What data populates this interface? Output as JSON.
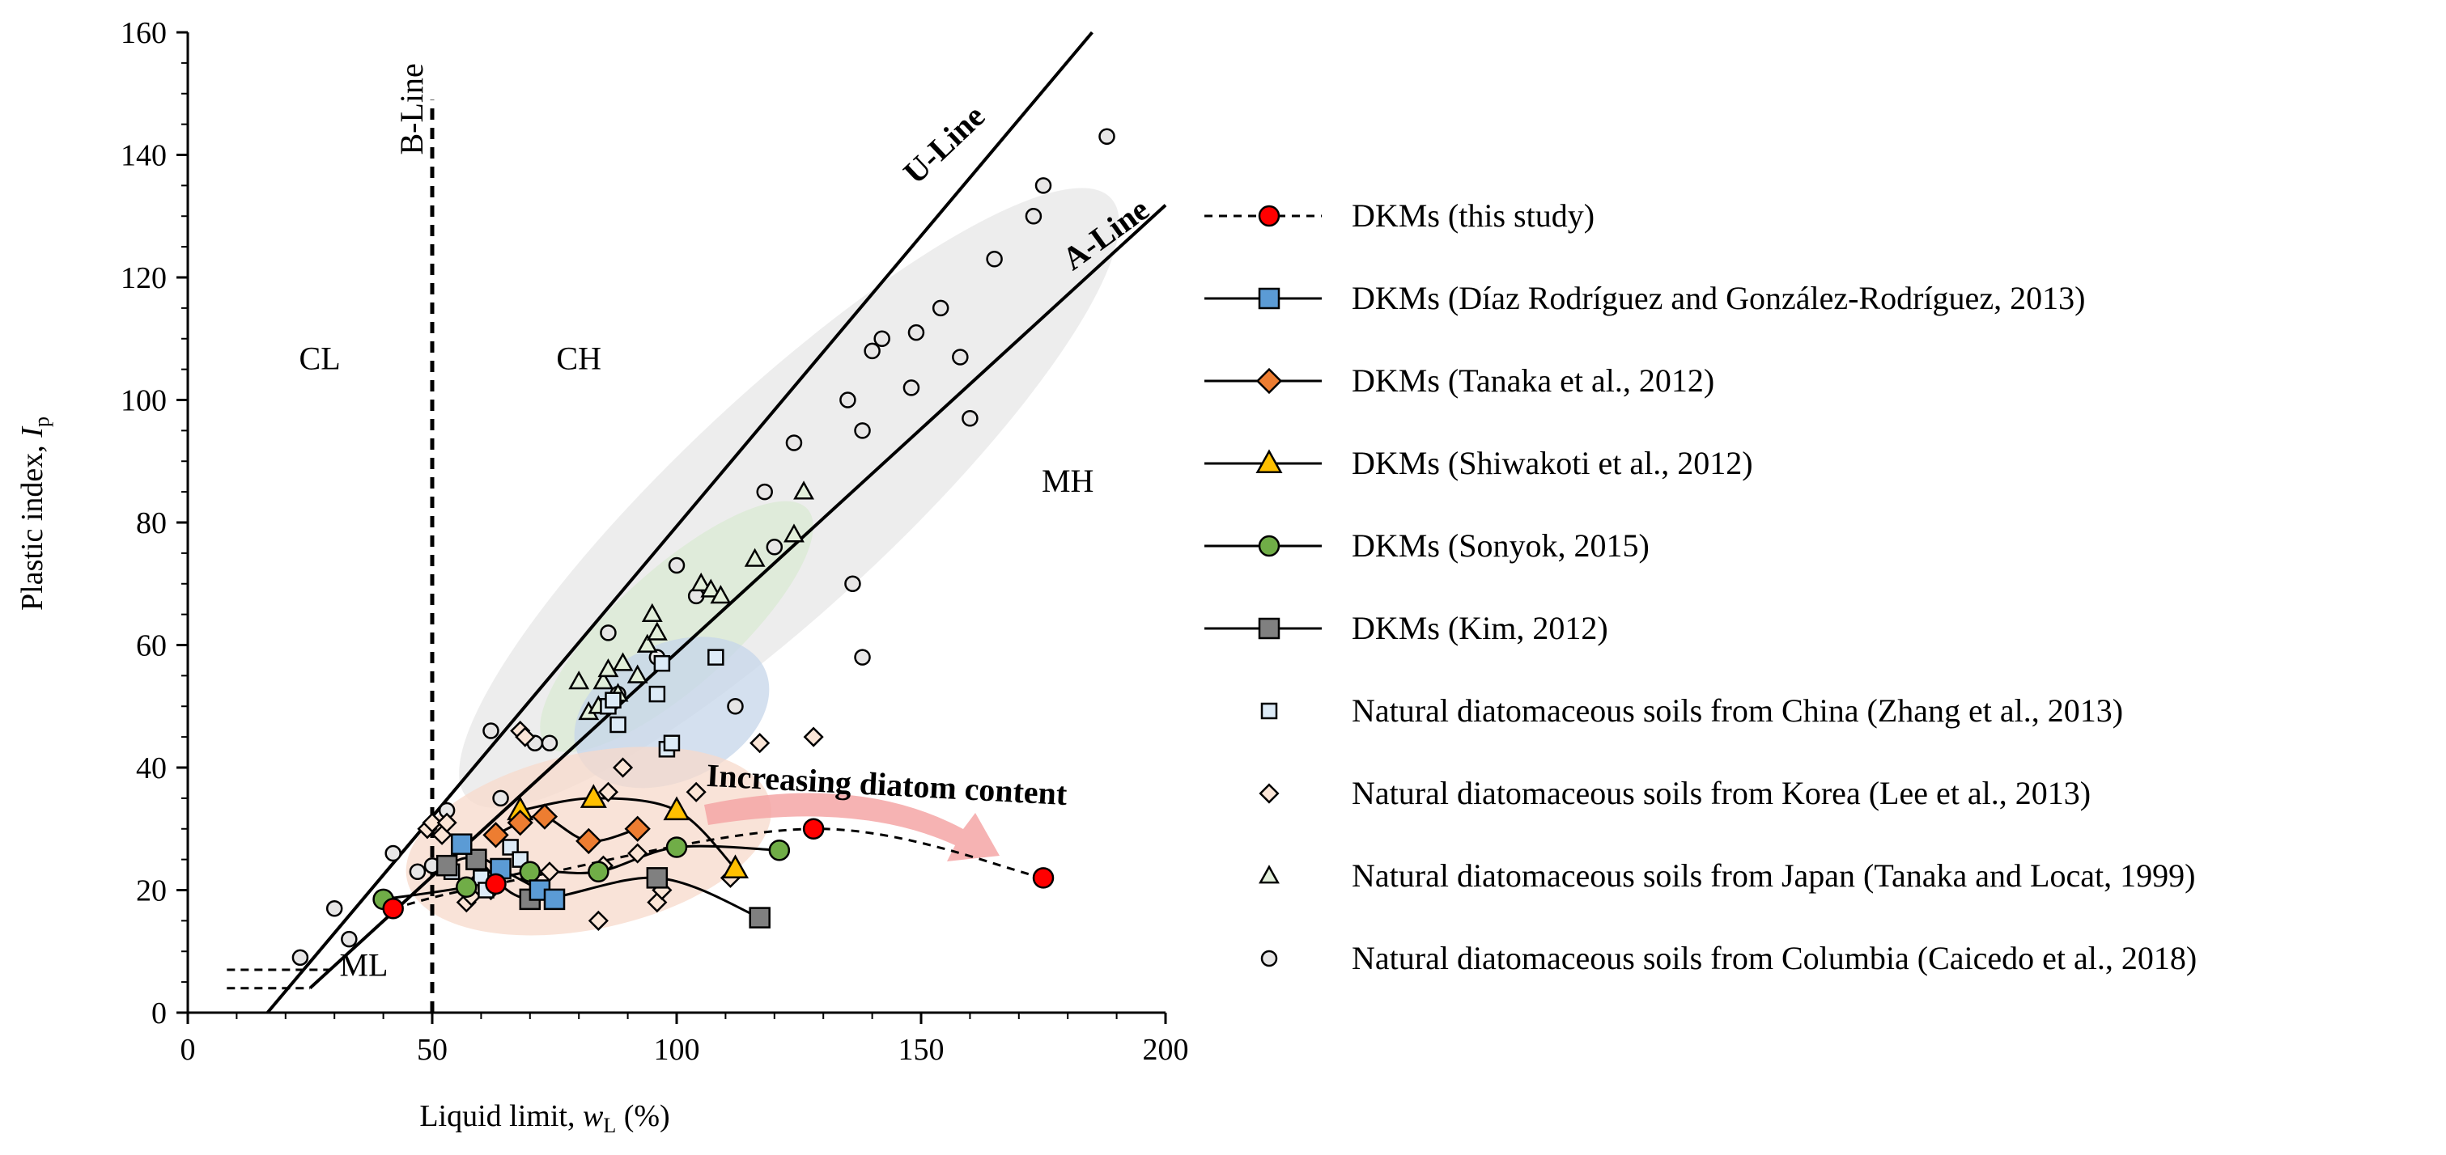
{
  "chart_data": {
    "type": "scatter",
    "title": "",
    "xlabel": "Liquid limit, ",
    "xlabel_var": "w",
    "xlabel_sub": "L",
    "xlabel_unit": " (%)",
    "ylabel": "Plastic index, ",
    "ylabel_var": "I",
    "ylabel_sub": "p",
    "xlim": [
      0,
      200
    ],
    "ylim": [
      0,
      160
    ],
    "xticks": [
      0,
      50,
      100,
      150,
      200
    ],
    "yticks": [
      0,
      20,
      40,
      60,
      80,
      100,
      120,
      140,
      160
    ],
    "grid": false,
    "legend_position": "right",
    "zone_labels": [
      {
        "text": "CL",
        "x": 27,
        "y": 105
      },
      {
        "text": "CH",
        "x": 80,
        "y": 105
      },
      {
        "text": "MH",
        "x": 180,
        "y": 85
      },
      {
        "text": "ML",
        "x": 36,
        "y": 6
      }
    ],
    "reference_lines": [
      {
        "name": "U-Line",
        "points": [
          [
            16.3,
            0
          ],
          [
            185,
            160
          ]
        ],
        "label_pos": [
          149,
          135
        ],
        "angle": -43.5
      },
      {
        "name": "A-Line",
        "points": [
          [
            25,
            4
          ],
          [
            200,
            131.8
          ]
        ],
        "label_pos": [
          181,
          121
        ],
        "angle": -36
      },
      {
        "name": "B-Line",
        "points": [
          [
            50,
            0
          ],
          [
            50,
            149
          ]
        ],
        "label_pos": [
          48,
          140
        ],
        "angle": -90
      }
    ],
    "ml_dashed": [
      {
        "points": [
          [
            8,
            7
          ],
          [
            29.5,
            7
          ]
        ]
      },
      {
        "points": [
          [
            8,
            4
          ],
          [
            25,
            4
          ]
        ]
      }
    ],
    "annotation": {
      "text": "Increasing diatom content",
      "x": 106,
      "y": 37
    },
    "series": [
      {
        "name": "DKMs (this study)",
        "marker": "circle",
        "fill": "#ff0000",
        "line": "dashed",
        "x": [
          42,
          63,
          128,
          175
        ],
        "y": [
          17,
          21,
          30,
          22
        ]
      },
      {
        "name": "DKMs (Díaz Rodríguez and González-Rodríguez, 2013)",
        "marker": "square",
        "fill": "#5b9bd5",
        "line": "solid",
        "x": [
          56,
          64,
          72,
          75
        ],
        "y": [
          27.5,
          23.5,
          20,
          18.5
        ]
      },
      {
        "name": "DKMs (Tanaka et al., 2012)",
        "marker": "diamond",
        "fill": "#ed7d31",
        "line": "solid",
        "x": [
          63,
          68,
          73,
          82,
          92
        ],
        "y": [
          29,
          31,
          32,
          28,
          30
        ]
      },
      {
        "name": "DKMs (Shiwakoti et al., 2012)",
        "marker": "triangle",
        "fill": "#ffc000",
        "line": "solid",
        "x": [
          68,
          83,
          100,
          112
        ],
        "y": [
          33,
          35,
          33,
          23.5
        ]
      },
      {
        "name": "DKMs (Sonyok, 2015)",
        "marker": "circle",
        "fill": "#70ad47",
        "line": "solid",
        "x": [
          40,
          57,
          70,
          84,
          100,
          121
        ],
        "y": [
          18.5,
          20.5,
          23,
          23,
          27,
          26.5
        ]
      },
      {
        "name": "DKMs (Kim, 2012)",
        "marker": "square",
        "fill": "#808080",
        "line": "solid",
        "x": [
          53,
          59,
          70,
          96,
          117
        ],
        "y": [
          24,
          25,
          18.5,
          22,
          15.5
        ]
      },
      {
        "name": "Natural diatomaceous soils from China (Zhang et al., 2013)",
        "marker": "square",
        "fill": "#ddebf7",
        "line": "none",
        "x": [
          86,
          87,
          88,
          96,
          97,
          98,
          99,
          108,
          66,
          54,
          60,
          61,
          68
        ],
        "y": [
          50,
          51,
          47,
          52,
          57,
          43,
          44,
          58,
          27,
          23,
          22,
          20,
          25
        ]
      },
      {
        "name": "Natural diatomaceous soils from Korea (Lee et al., 2013)",
        "marker": "diamond",
        "fill": "#fbe5d6",
        "line": "none",
        "x": [
          49,
          50,
          52,
          53,
          57,
          58,
          60,
          62,
          68,
          69,
          74,
          84,
          85,
          89,
          92,
          96,
          97,
          104,
          111,
          117,
          128,
          86
        ],
        "y": [
          30,
          31,
          29,
          31,
          18,
          19,
          22,
          20,
          46,
          45,
          23,
          15,
          24,
          40,
          26,
          18,
          20,
          36,
          22,
          44,
          45,
          36
        ]
      },
      {
        "name": "Natural diatomaceous soils from Japan (Tanaka and Locat, 1999)",
        "marker": "triangle",
        "fill": "#e2efda",
        "line": "none",
        "x": [
          80,
          82,
          84,
          85,
          86,
          88,
          89,
          92,
          94,
          95,
          96,
          105,
          107,
          109,
          116,
          124,
          126
        ],
        "y": [
          54,
          49,
          50,
          54,
          56,
          52,
          57,
          55,
          60,
          65,
          62,
          70,
          69,
          68,
          74,
          78,
          85
        ]
      },
      {
        "name": "Natural diatomaceous soils from Columbia (Caicedo et al., 2018)",
        "marker": "circle",
        "fill": "#e7e6e6",
        "line": "none",
        "x": [
          23,
          30,
          33,
          41,
          42,
          47,
          50,
          53,
          62,
          64,
          71,
          74,
          86,
          88,
          96,
          100,
          104,
          112,
          118,
          120,
          124,
          135,
          138,
          140,
          142,
          148,
          149,
          154,
          158,
          160,
          165,
          173,
          175,
          188,
          136,
          138
        ],
        "y": [
          9,
          17,
          12,
          18,
          26,
          23,
          24,
          33,
          46,
          35,
          44,
          44,
          62,
          52,
          58,
          73,
          68,
          50,
          85,
          76,
          93,
          100,
          95,
          108,
          110,
          102,
          111,
          115,
          107,
          97,
          123,
          130,
          135,
          143,
          70,
          58
        ]
      }
    ],
    "ellipses": [
      {
        "name": "columbia-region",
        "color": "#e7e7e7",
        "cx": 123,
        "cy": 84,
        "rx": 90,
        "ry": 22,
        "angle_deg": 43
      },
      {
        "name": "japan-region",
        "color": "#d9ead3",
        "cx": 100,
        "cy": 63,
        "rx": 36,
        "ry": 12,
        "angle_deg": 42
      },
      {
        "name": "china-region",
        "color": "#c5d6ea",
        "cx": 99,
        "cy": 49,
        "rx": 21,
        "ry": 14,
        "angle_deg": 25
      },
      {
        "name": "korea-region",
        "color": "#f7dacb",
        "cx": 82,
        "cy": 28,
        "rx": 38,
        "ry": 18,
        "angle_deg": 12
      }
    ]
  }
}
